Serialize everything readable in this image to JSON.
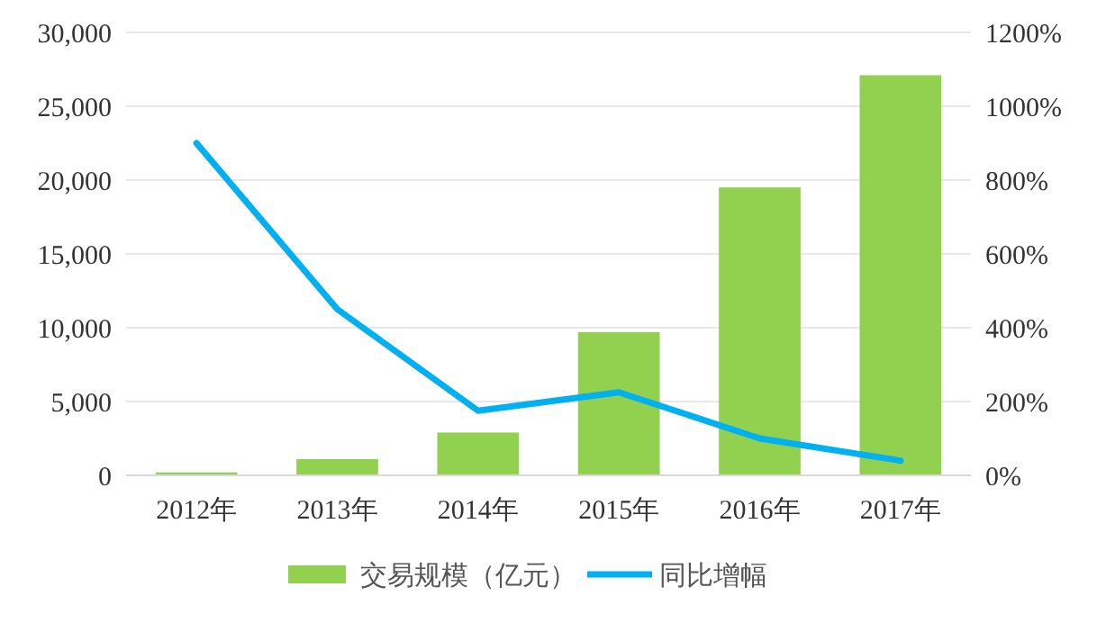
{
  "chart_data": {
    "type": "bar",
    "categories": [
      "2012年",
      "2013年",
      "2014年",
      "2015年",
      "2016年",
      "2017年"
    ],
    "series": [
      {
        "name": "交易规模（亿元）",
        "color": "#92d050",
        "values": [
          200,
          1100,
          2900,
          9700,
          19500,
          27100
        ]
      },
      {
        "name": "同比增幅",
        "type": "line",
        "axis": "y2",
        "color": "#00b0f0",
        "values": [
          900,
          450,
          175,
          225,
          100,
          40
        ]
      }
    ],
    "ylim": [
      0,
      30000
    ],
    "yticks": [
      {
        "value": 0,
        "label": "0"
      },
      {
        "value": 5000,
        "label": "5,000"
      },
      {
        "value": 10000,
        "label": "10,000"
      },
      {
        "value": 15000,
        "label": "15,000"
      },
      {
        "value": 20000,
        "label": "20,000"
      },
      {
        "value": 25000,
        "label": "25,000"
      },
      {
        "value": 30000,
        "label": "30,000"
      }
    ],
    "y2lim": [
      0,
      1200
    ],
    "y2ticks": [
      {
        "value": 0,
        "label": "0%"
      },
      {
        "value": 200,
        "label": "200%"
      },
      {
        "value": 400,
        "label": "400%"
      },
      {
        "value": 600,
        "label": "600%"
      },
      {
        "value": 800,
        "label": "800%"
      },
      {
        "value": 1000,
        "label": "1000%"
      },
      {
        "value": 1200,
        "label": "1200%"
      }
    ],
    "grid": "y",
    "legend": "bottom",
    "marker": "none",
    "line_style": "solid"
  }
}
